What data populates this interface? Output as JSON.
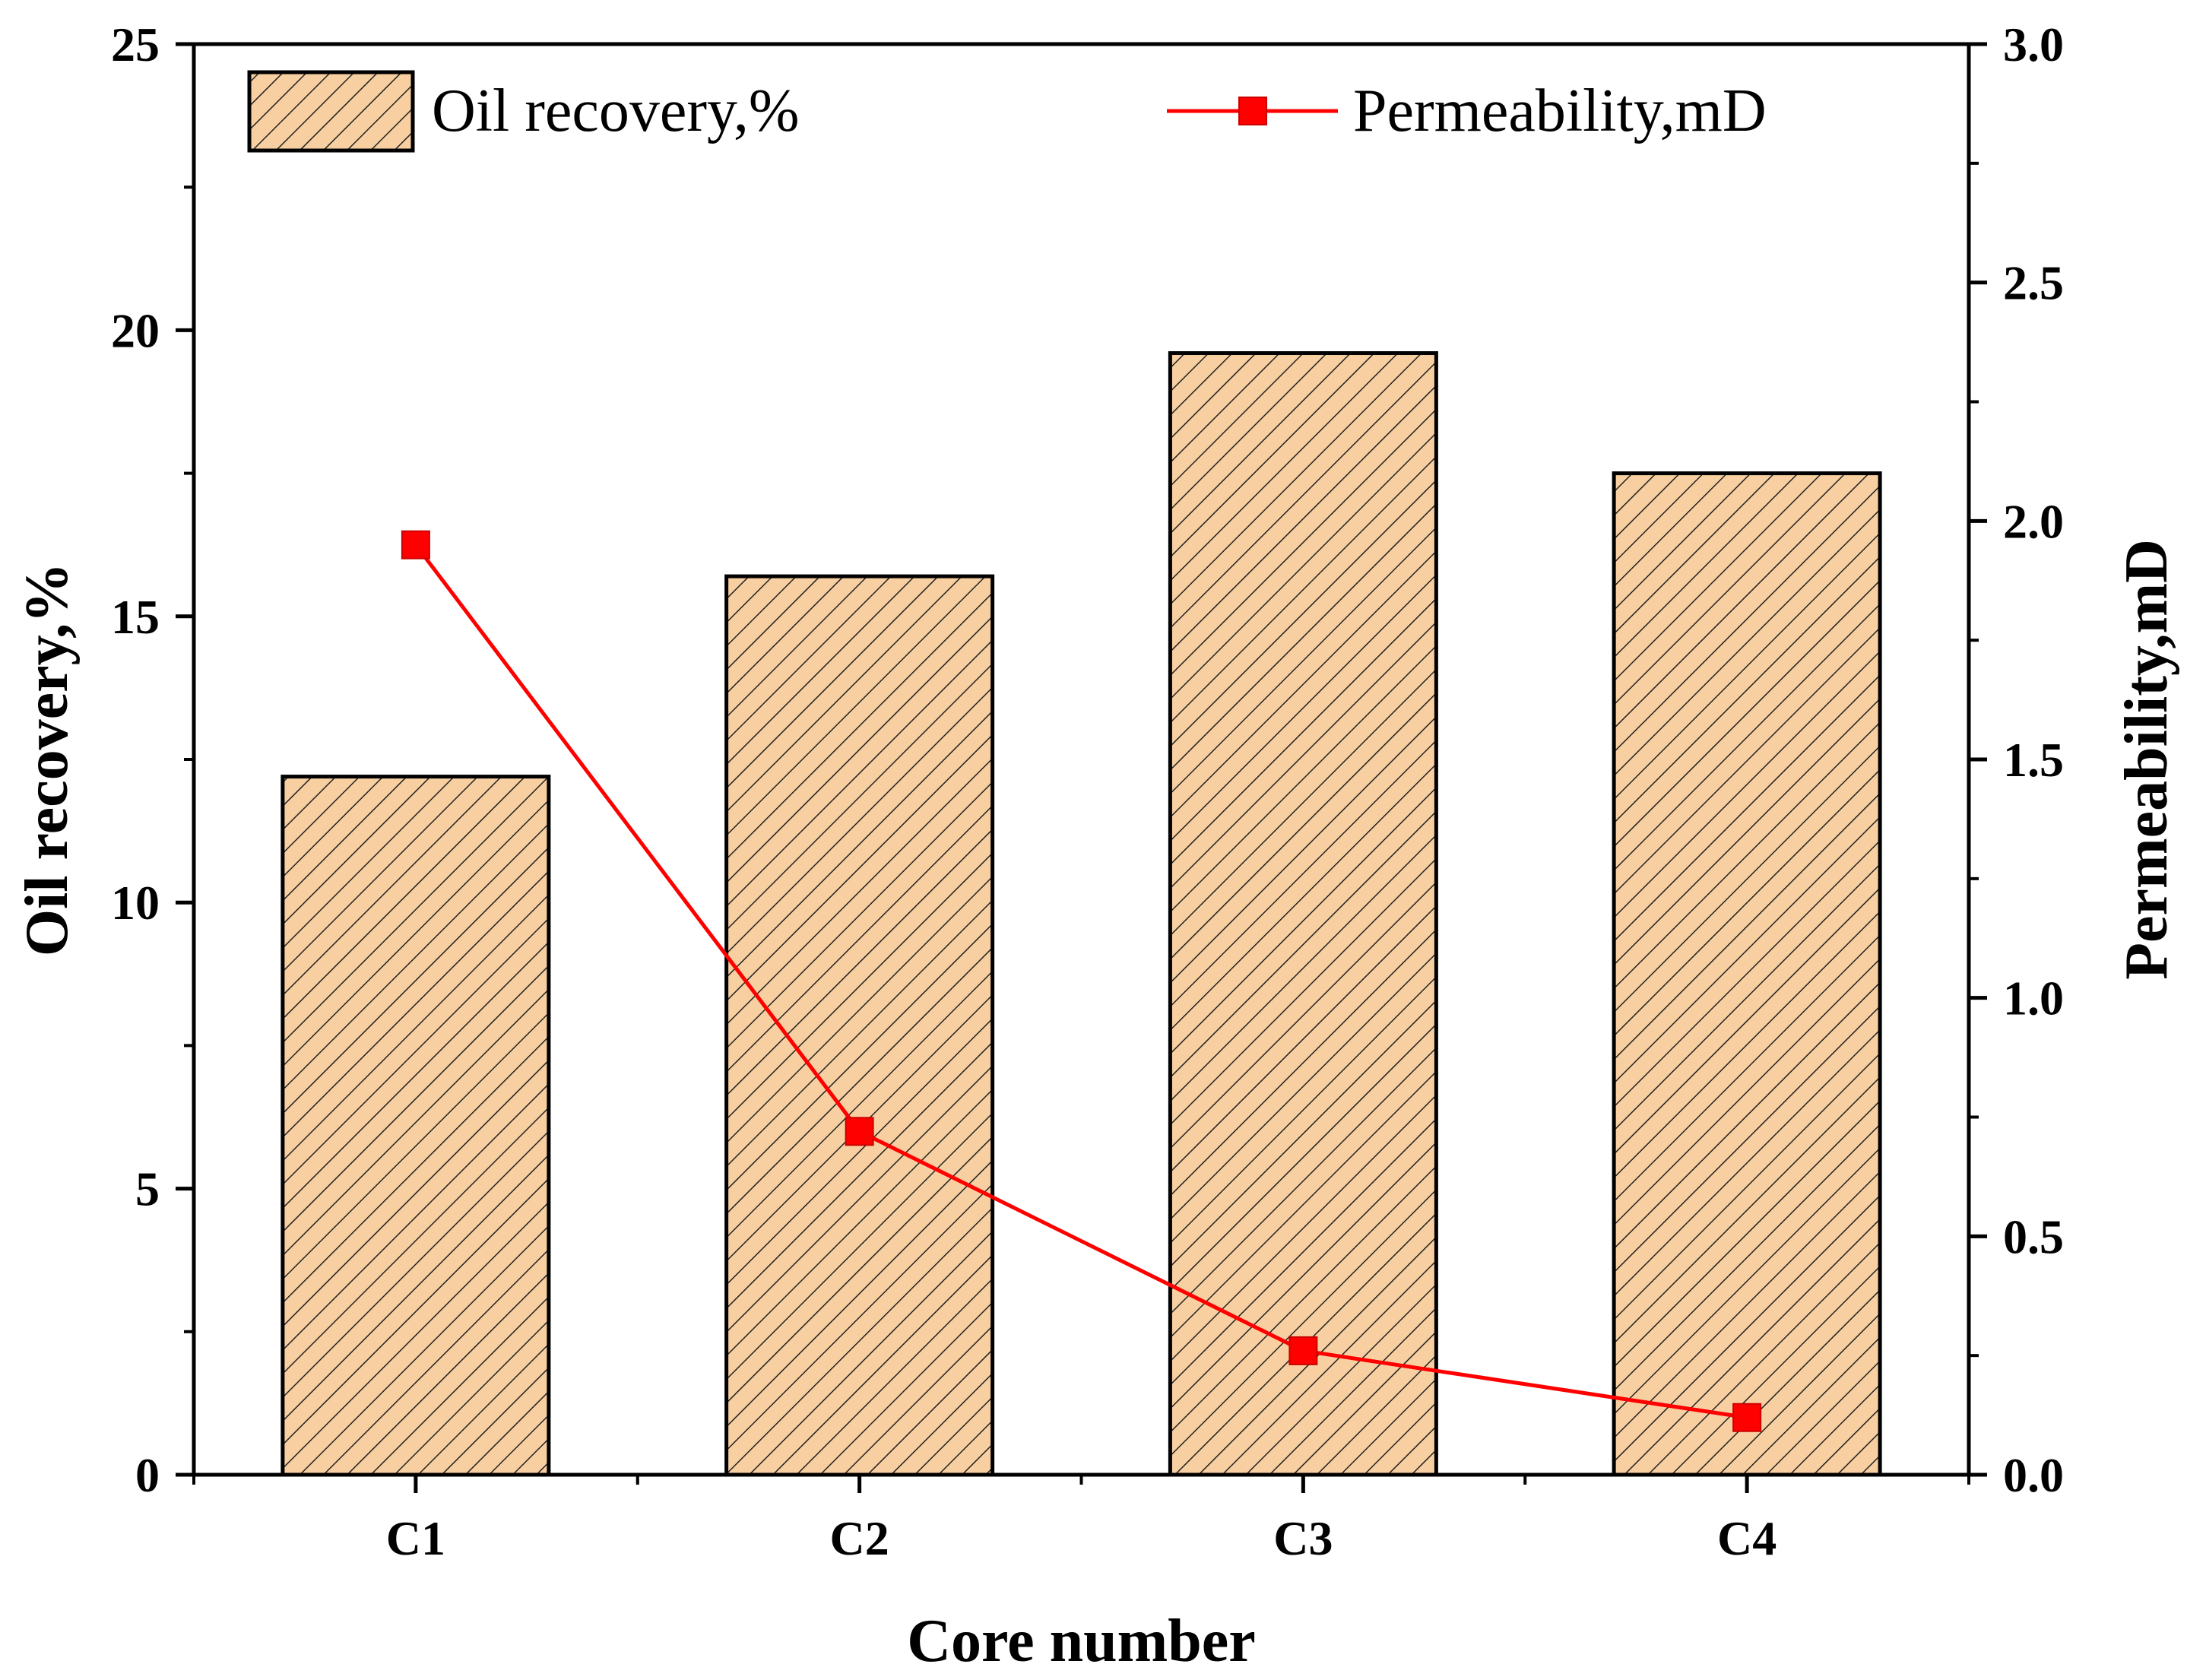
{
  "chart_data": {
    "type": "bar",
    "categories": [
      "C1",
      "C2",
      "C3",
      "C4"
    ],
    "xlabel": "Core number",
    "ylabel": "Oil recovery,%",
    "y2label": "Permeability,mD",
    "ylim": [
      0,
      25
    ],
    "y2lim": [
      0,
      3.0
    ],
    "yticks": [
      "0",
      "5",
      "10",
      "15",
      "20",
      "25"
    ],
    "y2ticks": [
      "0.0",
      "0.5",
      "1.0",
      "1.5",
      "2.0",
      "2.5",
      "3.0"
    ],
    "grid": false,
    "legend_position": "top",
    "series": [
      {
        "name": "Oil recovery,%",
        "kind": "bar",
        "axis": "left",
        "values": [
          12.2,
          15.7,
          19.6,
          17.5
        ],
        "fill": "#f8cfa0",
        "hatch": "diagonal",
        "edge": "#000000"
      },
      {
        "name": "Permeability,mD",
        "kind": "line",
        "axis": "right",
        "marker": "square",
        "values": [
          1.95,
          0.72,
          0.26,
          0.12
        ],
        "color": "#ff0000"
      }
    ]
  }
}
